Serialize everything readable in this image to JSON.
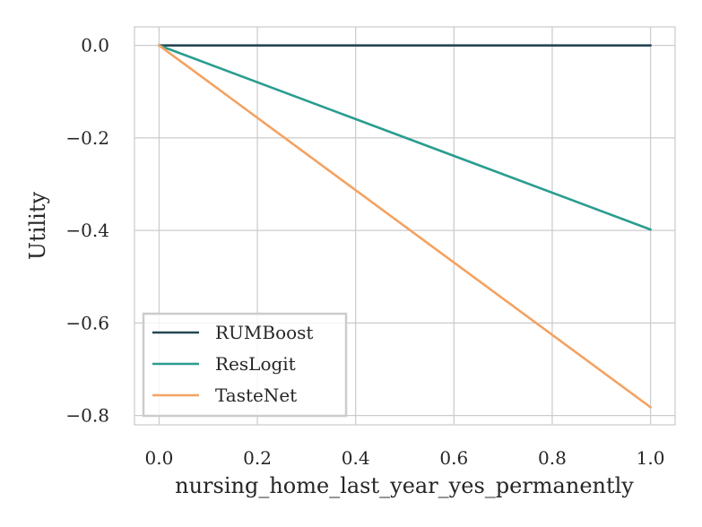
{
  "chart_data": {
    "type": "line",
    "xlabel": "nursing_home_last_year_yes_permanently",
    "ylabel": "Utility",
    "xlim": [
      -0.05,
      1.05
    ],
    "ylim": [
      -0.82,
      0.04
    ],
    "xticks": [
      0.0,
      0.2,
      0.4,
      0.6,
      0.8,
      1.0
    ],
    "xtick_labels": [
      "0.0",
      "0.2",
      "0.4",
      "0.6",
      "0.8",
      "1.0"
    ],
    "yticks": [
      0.0,
      -0.2,
      -0.4,
      -0.6,
      -0.8
    ],
    "ytick_labels": [
      "0.0",
      "−0.2",
      "−0.4",
      "−0.6",
      "−0.8"
    ],
    "grid": true,
    "legend_position": "lower-left",
    "series": [
      {
        "name": "RUMBoost",
        "color": "#264653",
        "x": [
          0.0,
          1.0
        ],
        "y": [
          0.0,
          0.0
        ]
      },
      {
        "name": "ResLogit",
        "color": "#2a9d8f",
        "x": [
          0.0,
          1.0
        ],
        "y": [
          0.0,
          -0.398
        ]
      },
      {
        "name": "TasteNet",
        "color": "#f4a261",
        "x": [
          0.0,
          1.0
        ],
        "y": [
          0.0,
          -0.782
        ]
      }
    ]
  }
}
